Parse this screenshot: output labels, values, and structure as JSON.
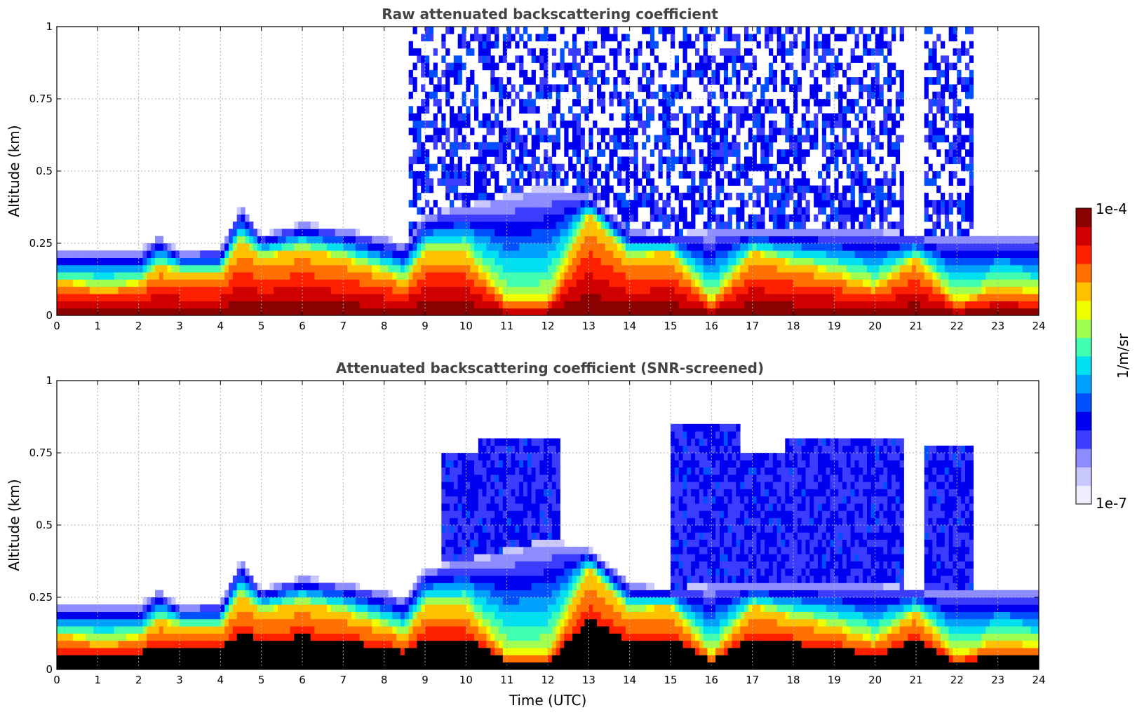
{
  "chart_data": [
    {
      "type": "heatmap",
      "panel": "raw",
      "title": "Raw attenuated backscattering coefficient",
      "xlabel": "",
      "ylabel": "Altitude (km)",
      "xlim": [
        0,
        24
      ],
      "ylim": [
        0,
        1
      ],
      "x_ticks": [
        "0",
        "1",
        "2",
        "3",
        "4",
        "5",
        "6",
        "7",
        "8",
        "9",
        "10",
        "11",
        "12",
        "13",
        "14",
        "15",
        "16",
        "17",
        "18",
        "19",
        "20",
        "21",
        "22",
        "23",
        "24"
      ],
      "y_ticks": [
        {
          "v": 0,
          "label": "0"
        },
        {
          "v": 0.25,
          "label": "0.25"
        },
        {
          "v": 0.5,
          "label": "0.5"
        },
        {
          "v": 0.75,
          "label": "0.75"
        },
        {
          "v": 1,
          "label": "1"
        }
      ],
      "grid": true,
      "boundary_layer_top_km": [
        [
          0,
          0.23
        ],
        [
          1,
          0.23
        ],
        [
          2,
          0.22
        ],
        [
          2.5,
          0.28
        ],
        [
          3,
          0.22
        ],
        [
          4,
          0.23
        ],
        [
          4.5,
          0.38
        ],
        [
          5,
          0.28
        ],
        [
          6,
          0.32
        ],
        [
          7,
          0.3
        ],
        [
          8,
          0.27
        ],
        [
          8.5,
          0.25
        ],
        [
          9,
          0.35
        ],
        [
          10,
          0.38
        ],
        [
          12,
          0.45
        ],
        [
          13,
          0.42
        ],
        [
          14,
          0.3
        ],
        [
          15,
          0.28
        ],
        [
          16,
          0.3
        ],
        [
          18,
          0.3
        ],
        [
          20,
          0.3
        ],
        [
          21,
          0.28
        ],
        [
          22,
          0.28
        ],
        [
          23,
          0.28
        ],
        [
          24,
          0.28
        ]
      ],
      "strong_layer_top_km": [
        [
          0,
          0.12
        ],
        [
          1,
          0.1
        ],
        [
          2,
          0.11
        ],
        [
          2.5,
          0.17
        ],
        [
          3,
          0.15
        ],
        [
          4,
          0.14
        ],
        [
          4.5,
          0.26
        ],
        [
          5,
          0.2
        ],
        [
          6,
          0.23
        ],
        [
          7,
          0.2
        ],
        [
          8,
          0.15
        ],
        [
          8.5,
          0.12
        ],
        [
          9,
          0.22
        ],
        [
          10,
          0.22
        ],
        [
          11,
          0.05
        ],
        [
          12,
          0.05
        ],
        [
          13,
          0.35
        ],
        [
          14,
          0.2
        ],
        [
          15,
          0.22
        ],
        [
          16,
          0.05
        ],
        [
          17,
          0.22
        ],
        [
          18,
          0.18
        ],
        [
          19,
          0.15
        ],
        [
          20,
          0.1
        ],
        [
          21,
          0.2
        ],
        [
          22,
          0.05
        ],
        [
          23,
          0.1
        ],
        [
          24,
          0.08
        ]
      ],
      "noise_upper_region_hours": [
        [
          8.6,
          15.0
        ],
        [
          15.0,
          20.7
        ],
        [
          21.2,
          22.4
        ]
      ]
    },
    {
      "type": "heatmap",
      "panel": "screened",
      "title": "Attenuated backscattering coefficient (SNR-screened)",
      "xlabel": "Time (UTC)",
      "ylabel": "Altitude (km)",
      "xlim": [
        0,
        24
      ],
      "ylim": [
        0,
        1
      ],
      "x_ticks": [
        "0",
        "1",
        "2",
        "3",
        "4",
        "5",
        "6",
        "7",
        "8",
        "9",
        "10",
        "11",
        "12",
        "13",
        "14",
        "15",
        "16",
        "17",
        "18",
        "19",
        "20",
        "21",
        "22",
        "23",
        "24"
      ],
      "y_ticks": [
        {
          "v": 0,
          "label": "0"
        },
        {
          "v": 0.25,
          "label": "0.25"
        },
        {
          "v": 0.5,
          "label": "0.5"
        },
        {
          "v": 0.75,
          "label": "0.75"
        },
        {
          "v": 1,
          "label": "1"
        }
      ],
      "grid": true,
      "blocks_km": [
        {
          "from": 9.4,
          "to": 10.3,
          "top": 0.75
        },
        {
          "from": 10.3,
          "to": 12.3,
          "top": 0.8
        },
        {
          "from": 15.0,
          "to": 16.7,
          "top": 0.85
        },
        {
          "from": 16.7,
          "to": 17.8,
          "top": 0.75
        },
        {
          "from": 17.8,
          "to": 20.7,
          "top": 0.8
        },
        {
          "from": 21.2,
          "to": 22.4,
          "top": 0.78
        }
      ]
    }
  ],
  "colorbar": {
    "label": "1/m/sr",
    "max_label": "1e-4",
    "min_label": "1e-7",
    "colors": [
      "#eeeeff",
      "#c8c8ff",
      "#8c8cff",
      "#3c3cff",
      "#0000f0",
      "#0050ff",
      "#00a0ff",
      "#00e0f0",
      "#40ffb0",
      "#a0ff50",
      "#f0ff00",
      "#ffc000",
      "#ff7000",
      "#ff2000",
      "#d00000",
      "#8b0000"
    ]
  }
}
